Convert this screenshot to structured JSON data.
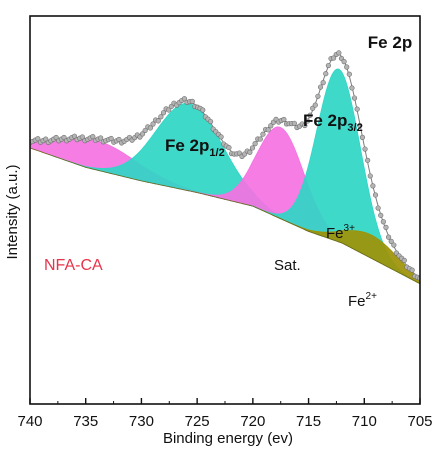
{
  "chart_data": {
    "type": "area",
    "title": "Fe 2p",
    "xlabel": "Binding energy (ev)",
    "ylabel": "Intensity (a.u.)",
    "x_reversed": true,
    "xlim": [
      740,
      705
    ],
    "xticks": [
      740,
      735,
      730,
      725,
      720,
      715,
      710,
      705
    ],
    "ylim": [
      0,
      1
    ],
    "y_tick_labels": false,
    "grid": false,
    "sample_name": "NFA-CA",
    "peak_labels": {
      "fe2p12": {
        "main": "Fe 2p",
        "sub": "1/2"
      },
      "fe2p32": {
        "main": "Fe 2p",
        "sub": "3/2"
      },
      "sat": "Sat.",
      "fe3": {
        "main": "Fe",
        "sup": "3+"
      },
      "fe2": {
        "main": "Fe",
        "sup": "2+"
      }
    },
    "background": {
      "x": [
        740,
        735,
        730,
        725,
        720,
        715,
        712,
        710,
        707,
        705
      ],
      "y": [
        0.66,
        0.61,
        0.575,
        0.545,
        0.51,
        0.445,
        0.415,
        0.385,
        0.34,
        0.31
      ]
    },
    "components": [
      {
        "name": "satellite-734",
        "center": 734.0,
        "height": 0.075,
        "sigma": 3.6,
        "color": "#f472e2"
      },
      {
        "name": "fe2p12-component",
        "center": 725.7,
        "height": 0.225,
        "sigma": 3.0,
        "color": "#2fd6c6"
      },
      {
        "name": "sat-component",
        "center": 717.5,
        "height": 0.235,
        "sigma": 2.1,
        "color": "#f472e2"
      },
      {
        "name": "fe3-component",
        "center": 712.3,
        "height": 0.445,
        "sigma": 1.95,
        "color": "#2fd6c6"
      },
      {
        "name": "fe2-component",
        "center": 709.3,
        "height": 0.06,
        "sigma": 2.4,
        "color": "#9e9205"
      }
    ],
    "envelope_color": "#a0a0a0",
    "label_colors": {
      "sample": "#e8334a",
      "peaks": "#111111"
    }
  }
}
